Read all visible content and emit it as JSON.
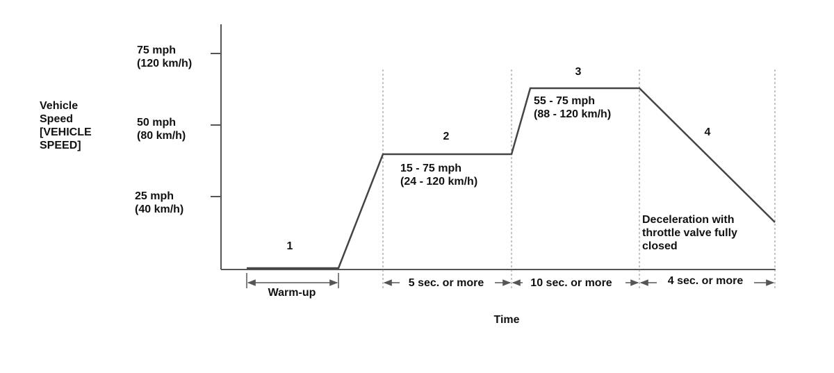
{
  "y_axis_label": {
    "lines": [
      "Vehicle",
      "Speed",
      "[VEHICLE",
      "SPEED]"
    ]
  },
  "y_ticks": [
    {
      "lines": [
        "75 mph",
        "(120 km/h)"
      ]
    },
    {
      "lines": [
        "50 mph",
        "(80 km/h)"
      ]
    },
    {
      "lines": [
        "25 mph",
        "(40 km/h)"
      ]
    }
  ],
  "phases": [
    {
      "number": "1",
      "duration": "Warm-up"
    },
    {
      "number": "2",
      "range": [
        "15 - 75 mph",
        "(24 - 120 km/h)"
      ],
      "duration": "5 sec. or more"
    },
    {
      "number": "3",
      "range": [
        "55 - 75 mph",
        "(88 - 120 km/h)"
      ],
      "duration": "10 sec. or more"
    },
    {
      "number": "4",
      "note": [
        "Deceleration with",
        "throttle valve fully",
        "closed"
      ],
      "duration": "4 sec. or more"
    }
  ],
  "x_axis_label": "Time"
}
